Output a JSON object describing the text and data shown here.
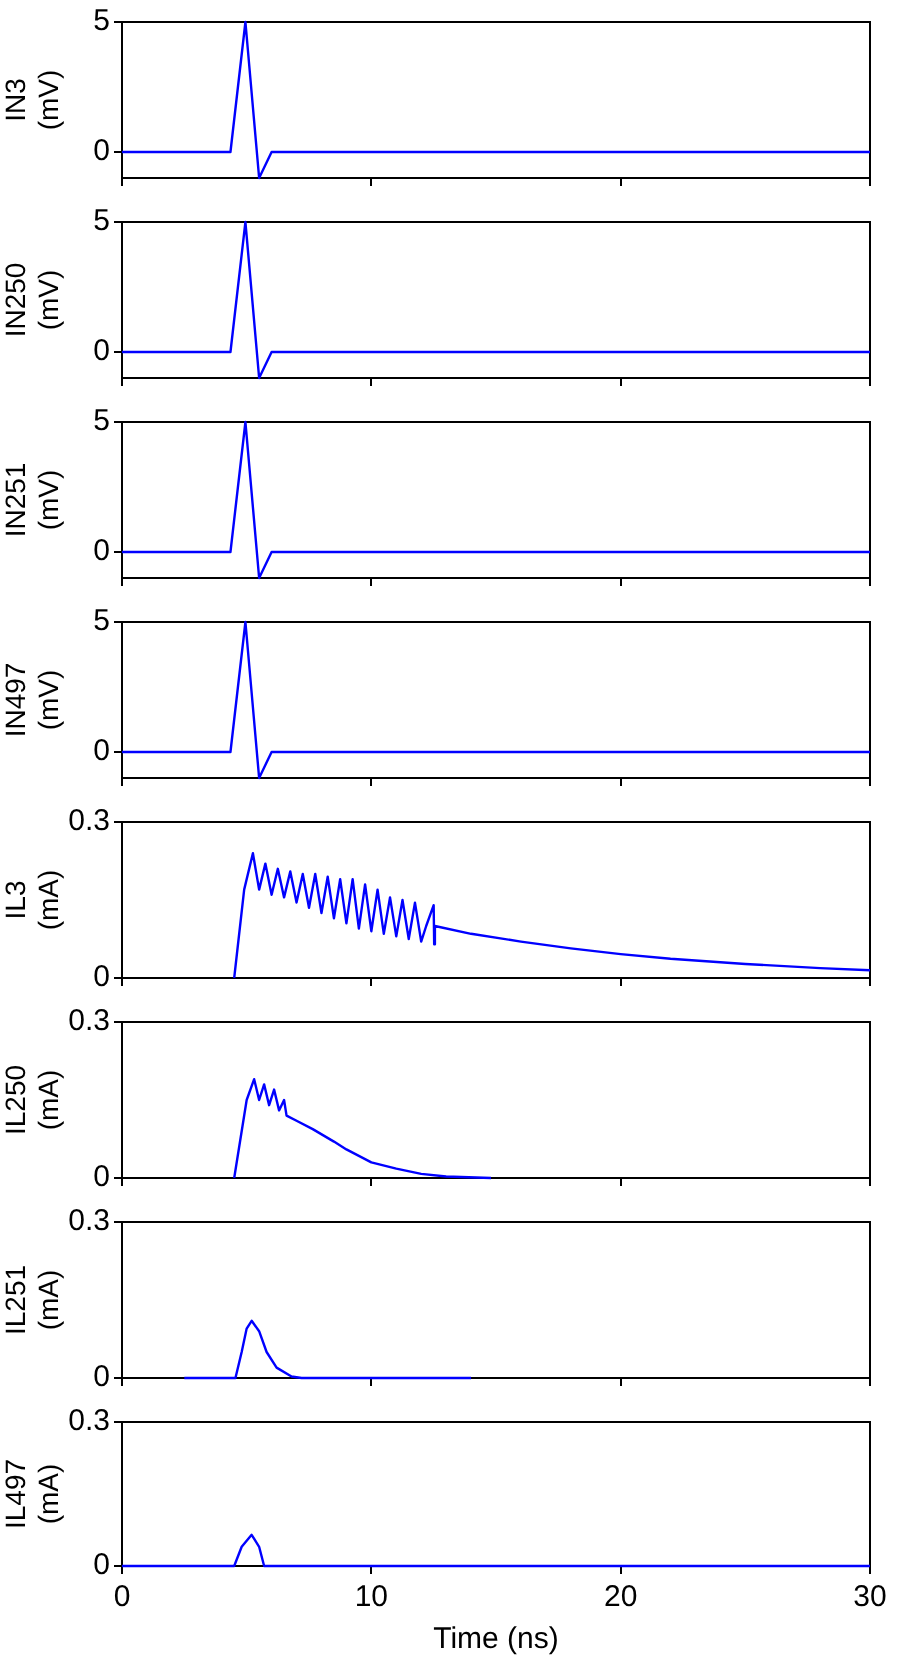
{
  "chart_data": [
    {
      "type": "line",
      "ylabel": "IN3 (mV)",
      "xlim": [
        0,
        30
      ],
      "xticks": [
        0,
        10,
        20,
        30
      ],
      "ylim": [
        -1,
        5
      ],
      "yticks": [
        0,
        5
      ],
      "tick_labels": "y",
      "grid": false,
      "series": [
        {
          "color": "#0000ff",
          "x": [
            0,
            4.35,
            4.95,
            5.5,
            6.0,
            30
          ],
          "values": [
            0,
            0,
            5,
            -1,
            0,
            0
          ]
        }
      ]
    },
    {
      "type": "line",
      "ylabel": "IN250 (mV)",
      "xlim": [
        0,
        30
      ],
      "xticks": [
        0,
        10,
        20,
        30
      ],
      "ylim": [
        -1,
        5
      ],
      "yticks": [
        0,
        5
      ],
      "tick_labels": "y",
      "grid": false,
      "series": [
        {
          "color": "#0000ff",
          "x": [
            0,
            4.35,
            4.95,
            5.5,
            6.0,
            30
          ],
          "values": [
            0,
            0,
            5,
            -1,
            0,
            0
          ]
        }
      ]
    },
    {
      "type": "line",
      "ylabel": "IN251 (mV)",
      "xlim": [
        0,
        30
      ],
      "xticks": [
        0,
        10,
        20,
        30
      ],
      "ylim": [
        -1,
        5
      ],
      "yticks": [
        0,
        5
      ],
      "tick_labels": "y",
      "grid": false,
      "series": [
        {
          "color": "#0000ff",
          "x": [
            0,
            4.35,
            4.95,
            5.5,
            6.0,
            30
          ],
          "values": [
            0,
            0,
            5,
            -1,
            0,
            0
          ]
        }
      ]
    },
    {
      "type": "line",
      "ylabel": "IN497 (mV)",
      "xlim": [
        0,
        30
      ],
      "xticks": [
        0,
        10,
        20,
        30
      ],
      "ylim": [
        -1,
        5
      ],
      "yticks": [
        0,
        5
      ],
      "tick_labels": "y",
      "grid": false,
      "series": [
        {
          "color": "#0000ff",
          "x": [
            0,
            4.35,
            4.95,
            5.5,
            6.0,
            30
          ],
          "values": [
            0,
            0,
            5,
            -1,
            0,
            0
          ]
        }
      ]
    },
    {
      "type": "line",
      "ylabel": "IL3 (mA)",
      "xlim": [
        0,
        30
      ],
      "xticks": [
        0,
        10,
        20,
        30
      ],
      "ylim": [
        0,
        0.3
      ],
      "yticks": [
        0,
        0.3
      ],
      "tick_labels": "y",
      "grid": false,
      "series": [
        {
          "color": "#0000ff",
          "x": [
            4.5,
            4.9,
            5.25,
            5.5,
            5.75,
            6.0,
            6.25,
            6.5,
            6.75,
            7.0,
            7.25,
            7.5,
            7.75,
            8.0,
            8.25,
            8.5,
            8.75,
            9.0,
            9.25,
            9.5,
            9.75,
            10.0,
            10.25,
            10.5,
            10.75,
            11.0,
            11.25,
            11.5,
            11.75,
            12.0,
            12.2,
            12.5,
            12.52,
            12.55,
            14,
            16,
            18,
            20,
            22,
            25,
            28,
            30
          ],
          "values": [
            0,
            0.17,
            0.24,
            0.17,
            0.22,
            0.16,
            0.21,
            0.155,
            0.205,
            0.145,
            0.2,
            0.135,
            0.2,
            0.125,
            0.195,
            0.115,
            0.19,
            0.105,
            0.19,
            0.095,
            0.18,
            0.09,
            0.17,
            0.085,
            0.155,
            0.08,
            0.15,
            0.075,
            0.145,
            0.07,
            0.1,
            0.14,
            0.065,
            0.1,
            0.085,
            0.07,
            0.057,
            0.046,
            0.037,
            0.027,
            0.019,
            0.015
          ]
        }
      ]
    },
    {
      "type": "line",
      "ylabel": "IL250 (mA)",
      "xlim": [
        0,
        30
      ],
      "xticks": [
        0,
        10,
        20,
        30
      ],
      "ylim": [
        0,
        0.3
      ],
      "yticks": [
        0,
        0.3
      ],
      "tick_labels": "y",
      "grid": false,
      "series": [
        {
          "color": "#0000ff",
          "x": [
            4.5,
            5.0,
            5.3,
            5.5,
            5.7,
            5.9,
            6.1,
            6.3,
            6.5,
            6.6,
            7,
            7.65,
            8.5,
            9,
            10,
            11,
            12,
            13,
            14.8
          ],
          "values": [
            0,
            0.15,
            0.19,
            0.15,
            0.18,
            0.14,
            0.17,
            0.13,
            0.15,
            0.12,
            0.11,
            0.094,
            0.07,
            0.055,
            0.03,
            0.018,
            0.008,
            0.003,
            0
          ]
        }
      ]
    },
    {
      "type": "line",
      "ylabel": "IL251 (mA)",
      "xlim": [
        0,
        30
      ],
      "xticks": [
        0,
        10,
        20,
        30
      ],
      "ylim": [
        0,
        0.3
      ],
      "yticks": [
        0,
        0.3
      ],
      "tick_labels": "y",
      "grid": false,
      "series": [
        {
          "color": "#0000ff",
          "x": [
            2.5,
            4.55,
            4.8,
            5.0,
            5.2,
            5.5,
            5.8,
            6.2,
            6.8,
            7.2,
            14
          ],
          "values": [
            0,
            0,
            0.05,
            0.095,
            0.11,
            0.09,
            0.05,
            0.02,
            0.003,
            0,
            0
          ]
        }
      ]
    },
    {
      "type": "line",
      "ylabel": "IL497 (mA)",
      "xlabel": "Time (ns)",
      "xlim": [
        0,
        30
      ],
      "xticks": [
        0,
        10,
        20,
        30
      ],
      "ylim": [
        0,
        0.3
      ],
      "yticks": [
        0,
        0.3
      ],
      "grid": false,
      "series": [
        {
          "color": "#0000ff",
          "x": [
            0,
            4.5,
            4.8,
            5.2,
            5.5,
            5.7,
            30
          ],
          "values": [
            0,
            0,
            0.04,
            0.065,
            0.04,
            0,
            0
          ]
        }
      ]
    }
  ]
}
